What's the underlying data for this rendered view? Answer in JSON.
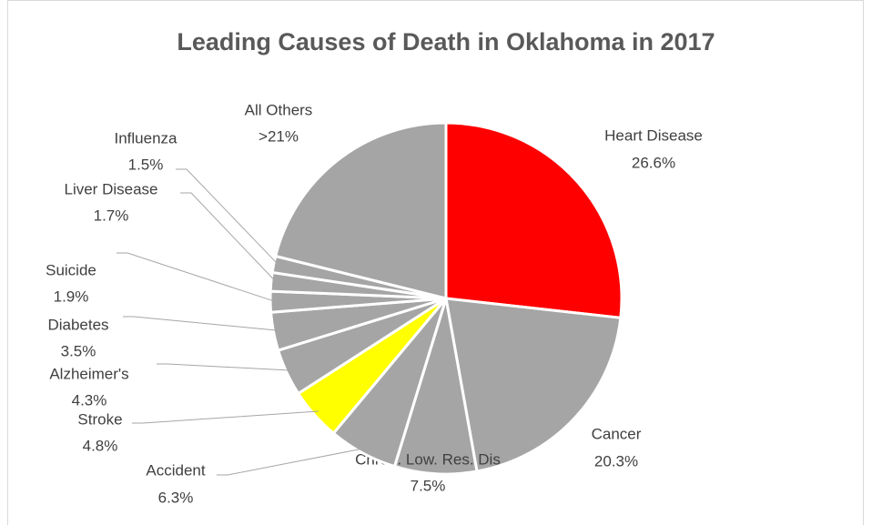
{
  "chart_data": {
    "type": "pie",
    "title": "Leading Causes of Death in Oklahoma in 2017",
    "categories": [
      "Heart Disease",
      "Cancer",
      "Chron. Low. Res. Dis",
      "Accident",
      "Stroke",
      "Alzheimer's",
      "Diabetes",
      "Suicide",
      "Liver Disease",
      "Influenza",
      "All Others"
    ],
    "values": [
      26.6,
      20.3,
      7.5,
      6.3,
      4.8,
      4.3,
      3.5,
      1.9,
      1.7,
      1.5,
      21
    ],
    "value_labels": [
      "26.6%",
      "20.3%",
      "7.5%",
      "6.3%",
      "4.8%",
      "4.3%",
      "3.5%",
      "1.9%",
      "1.7%",
      "1.5%",
      ">21%"
    ],
    "colors": [
      "#ff0000",
      "#a5a5a5",
      "#a5a5a5",
      "#a5a5a5",
      "#ffff00",
      "#a5a5a5",
      "#a5a5a5",
      "#a5a5a5",
      "#a5a5a5",
      "#a5a5a5",
      "#a5a5a5"
    ]
  }
}
